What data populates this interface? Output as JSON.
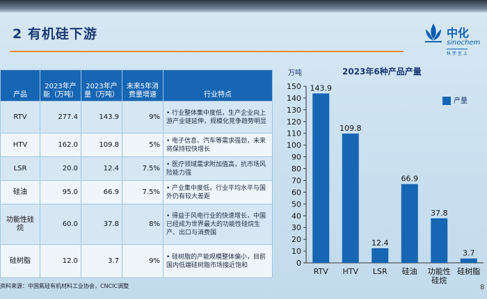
{
  "title": "2 有机硅下游",
  "logo": {
    "brand": "中化",
    "brand_en": "sinochem",
    "tagline": "科 学 至 上"
  },
  "table": {
    "headers": [
      "产品",
      "2023年产能（万吨）",
      "2023年产量（万吨）",
      "未来5年消费量增速",
      "行业特点"
    ],
    "rows": [
      {
        "product": "RTV",
        "capacity": "277.4",
        "output": "143.9",
        "growth": "9%",
        "feature": "行业整体集中度低，生产企业向上游产业链延伸，规模化竞争趋势明显"
      },
      {
        "product": "HTV",
        "capacity": "162.0",
        "output": "109.8",
        "growth": "5%",
        "feature": "电子信息、汽车等需求强劲，未来将保持较快增长"
      },
      {
        "product": "LSR",
        "capacity": "20.0",
        "output": "12.4",
        "growth": "7.5%",
        "feature": "医疗领域需求附加值高，抗市场风险能力强"
      },
      {
        "product": "硅油",
        "capacity": "95.0",
        "output": "66.9",
        "growth": "7.5%",
        "feature": "产业集中度低，行业平均水平与国外仍有较大差距"
      },
      {
        "product": "功能性硅烷",
        "capacity": "60.0",
        "output": "37.8",
        "growth": "8%",
        "feature": "得益于风电行业的快速增长，中国已经成为世界最大的功能性硅烷生产、出口与消费国"
      },
      {
        "product": "硅树脂",
        "capacity": "12.0",
        "output": "3.7",
        "growth": "9%",
        "feature": "硅树脂的产能规模整体偏小，目前国内低端硅树脂市场接近饱和"
      }
    ]
  },
  "chart_data": {
    "type": "bar",
    "title": "2023年6种产品产量",
    "ylabel": "万吨",
    "categories": [
      "RTV",
      "HTV",
      "LSR",
      "硅油",
      "功能性硅烷",
      "硅树脂"
    ],
    "series": [
      {
        "name": "产量",
        "values": [
          143.9,
          109.8,
          12.4,
          66.9,
          37.8,
          3.7
        ],
        "color": "#1766b4"
      }
    ],
    "ylim": [
      0,
      150
    ],
    "yticks": [
      0,
      10,
      20,
      30,
      40,
      50,
      60,
      70,
      80,
      90,
      100,
      110,
      120,
      130,
      140,
      150
    ],
    "legend": "top-right",
    "grid": false
  },
  "source": "资料来源：中国氟硅有机材料工业协会，CNCIC调整",
  "page_number": "8"
}
